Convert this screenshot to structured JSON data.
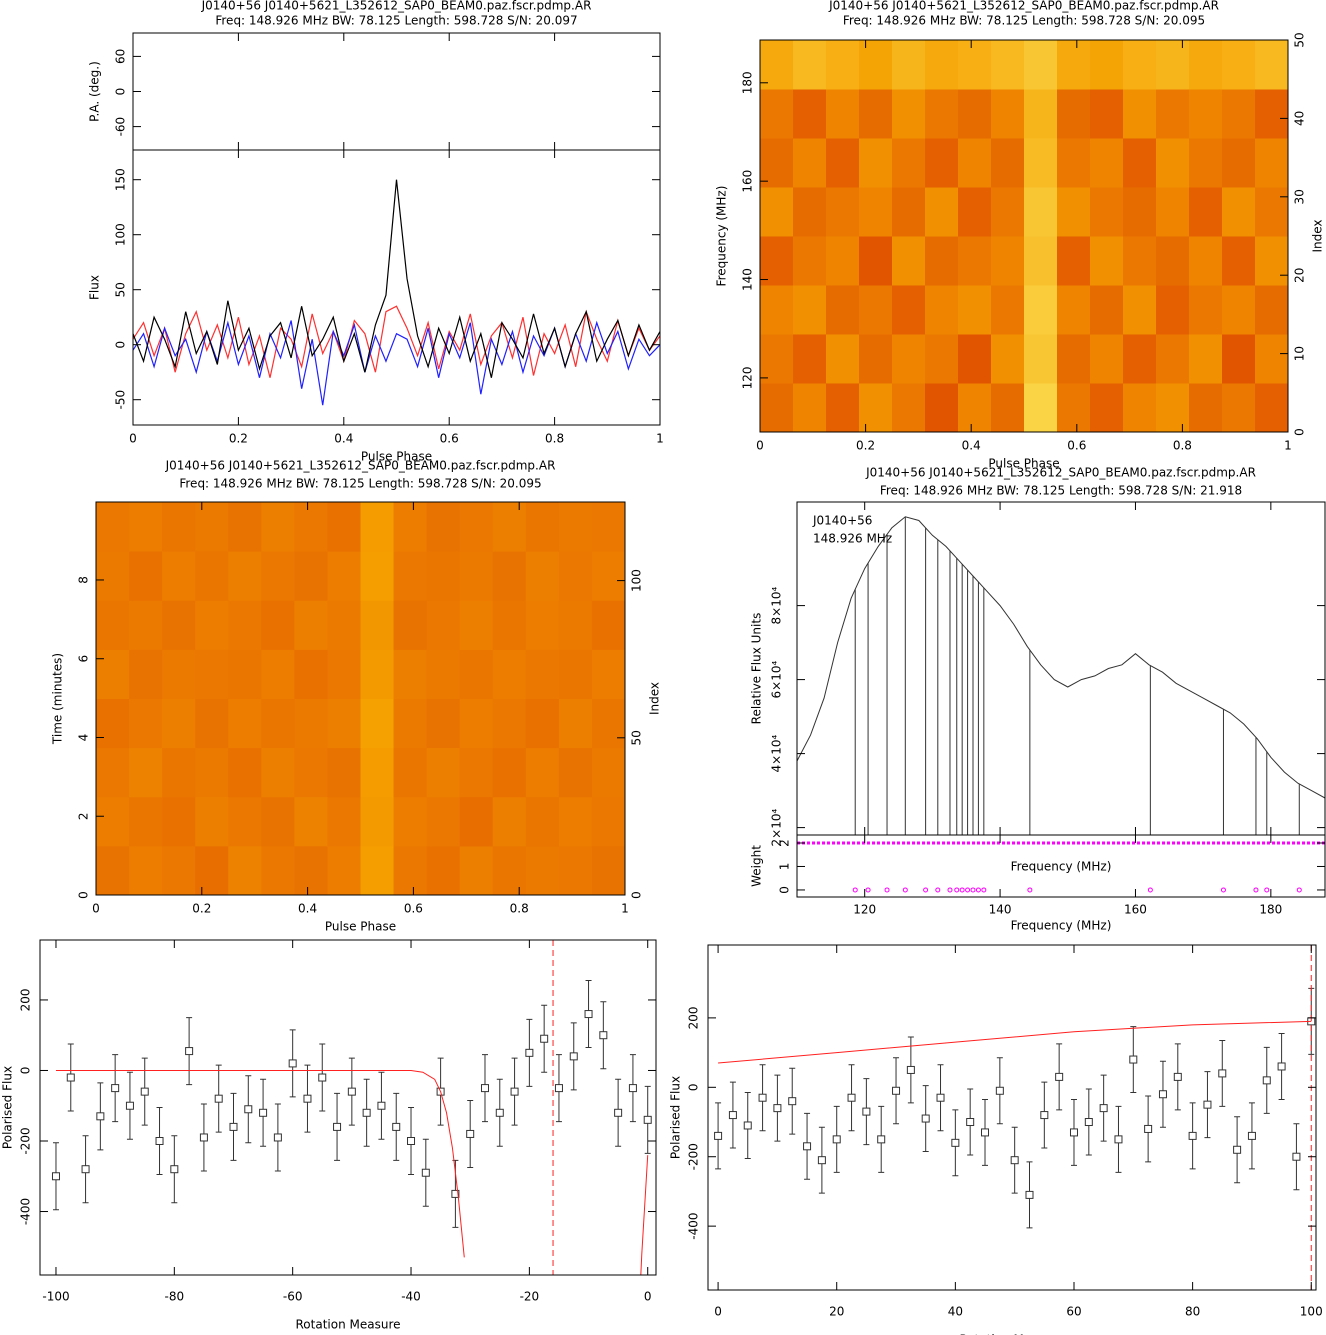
{
  "chart_data": [
    {
      "type": "profile",
      "title": "J0140+56 J0140+5621_L352612_SAP0_BEAM0.paz.fscr.pdmp.AR",
      "subtitle": "Freq: 148.926 MHz BW: 78.125 Length: 598.728 S/N: 20.097",
      "xlabel": "Pulse Phase",
      "ylabel": "Flux",
      "pa_ylabel": "P.A. (deg.)",
      "xlim": [
        0,
        1
      ],
      "xticks": [
        0,
        0.2,
        0.4,
        0.6,
        0.8,
        1
      ],
      "ylim": [
        -73,
        177
      ],
      "yticks": [
        -50,
        0,
        50,
        100,
        150
      ],
      "pa_ylim": [
        -100,
        100
      ],
      "pa_yticks": [
        -60,
        0,
        60
      ],
      "x": [
        0,
        0.02,
        0.04,
        0.06,
        0.08,
        0.1,
        0.12,
        0.14,
        0.16,
        0.18,
        0.2,
        0.22,
        0.24,
        0.26,
        0.28,
        0.3,
        0.32,
        0.34,
        0.36,
        0.38,
        0.4,
        0.42,
        0.44,
        0.46,
        0.48,
        0.5,
        0.52,
        0.54,
        0.56,
        0.58,
        0.6,
        0.62,
        0.64,
        0.66,
        0.68,
        0.7,
        0.72,
        0.74,
        0.76,
        0.78,
        0.8,
        0.82,
        0.84,
        0.86,
        0.88,
        0.9,
        0.92,
        0.94,
        0.96,
        0.98,
        1
      ],
      "series": [
        {
          "color": "#ff3030",
          "values": [
            5,
            20,
            -10,
            15,
            -25,
            10,
            30,
            -5,
            18,
            -12,
            25,
            -18,
            8,
            -30,
            15,
            5,
            -20,
            28,
            -8,
            12,
            -15,
            22,
            10,
            -25,
            30,
            35,
            15,
            -10,
            20,
            -22,
            12,
            -5,
            28,
            -18,
            8,
            20,
            -12,
            25,
            -28,
            10,
            -8,
            18,
            -20,
            30,
            5,
            -15,
            22,
            -10,
            15,
            -5,
            8
          ]
        },
        {
          "color": "#2020ff",
          "values": [
            -5,
            10,
            -20,
            15,
            -10,
            5,
            -25,
            12,
            -15,
            20,
            -18,
            8,
            -30,
            10,
            -12,
            22,
            -40,
            5,
            -55,
            12,
            -10,
            18,
            -25,
            8,
            -15,
            10,
            5,
            -20,
            15,
            -30,
            10,
            -12,
            20,
            -45,
            5,
            -18,
            12,
            -25,
            8,
            -10,
            15,
            -20,
            10,
            -15,
            20,
            -8,
            12,
            -22,
            5,
            -10,
            0
          ]
        },
        {
          "color": "#000000",
          "values": [
            10,
            -15,
            25,
            5,
            -20,
            30,
            -8,
            12,
            -18,
            40,
            -5,
            15,
            -22,
            8,
            20,
            -12,
            35,
            -10,
            5,
            25,
            -15,
            10,
            -25,
            18,
            45,
            150,
            60,
            8,
            -20,
            15,
            -8,
            25,
            -15,
            10,
            -30,
            20,
            5,
            -12,
            28,
            -8,
            15,
            -20,
            10,
            30,
            -15,
            5,
            22,
            -10,
            18,
            -5,
            12
          ]
        }
      ]
    },
    {
      "type": "heatmap",
      "title": "J0140+56 J0140+5621_L352612_SAP0_BEAM0.paz.fscr.pdmp.AR",
      "subtitle": "Freq: 148.926 MHz BW: 78.125 Length: 598.728 S/N: 20.095",
      "xlabel": "Pulse Phase",
      "ylabel": "Frequency (MHz)",
      "y2label": "Index",
      "xlim": [
        0,
        1
      ],
      "xticks": [
        0,
        0.2,
        0.4,
        0.6,
        0.8,
        1
      ],
      "ylim": [
        109,
        188.7
      ],
      "yticks": [
        120,
        140,
        160,
        180
      ],
      "y2lim": [
        0,
        50
      ],
      "y2ticks": [
        0,
        10,
        20,
        30,
        40,
        50
      ],
      "colormap": [
        "#800000",
        "#e05000",
        "#f5a000",
        "#ffff80"
      ],
      "z": [
        [
          0.45,
          0.55,
          0.4,
          0.6,
          0.5,
          0.35,
          0.55,
          0.45,
          0.85,
          0.5,
          0.4,
          0.55,
          0.6,
          0.45,
          0.5,
          0.4
        ],
        [
          0.5,
          0.4,
          0.6,
          0.45,
          0.55,
          0.5,
          0.35,
          0.6,
          0.8,
          0.45,
          0.55,
          0.4,
          0.5,
          0.6,
          0.35,
          0.55
        ],
        [
          0.55,
          0.6,
          0.45,
          0.5,
          0.4,
          0.55,
          0.6,
          0.5,
          0.82,
          0.55,
          0.45,
          0.6,
          0.4,
          0.5,
          0.55,
          0.45
        ],
        [
          0.4,
          0.5,
          0.55,
          0.35,
          0.6,
          0.45,
          0.5,
          0.55,
          0.78,
          0.4,
          0.6,
          0.5,
          0.45,
          0.55,
          0.4,
          0.6
        ],
        [
          0.6,
          0.45,
          0.5,
          0.55,
          0.45,
          0.6,
          0.4,
          0.5,
          0.8,
          0.6,
          0.5,
          0.45,
          0.55,
          0.4,
          0.6,
          0.5
        ],
        [
          0.45,
          0.55,
          0.4,
          0.6,
          0.5,
          0.4,
          0.55,
          0.45,
          0.76,
          0.5,
          0.55,
          0.4,
          0.6,
          0.5,
          0.45,
          0.55
        ],
        [
          0.5,
          0.4,
          0.55,
          0.45,
          0.6,
          0.5,
          0.45,
          0.55,
          0.74,
          0.45,
          0.4,
          0.6,
          0.5,
          0.55,
          0.5,
          0.4
        ],
        [
          0.7,
          0.75,
          0.72,
          0.68,
          0.74,
          0.7,
          0.72,
          0.75,
          0.8,
          0.7,
          0.68,
          0.72,
          0.74,
          0.7,
          0.72,
          0.75
        ]
      ]
    },
    {
      "type": "heatmap",
      "title": "J0140+56 J0140+5621_L352612_SAP0_BEAM0.paz.fscr.pdmp.AR",
      "subtitle": "Freq: 148.926 MHz BW: 78.125 Length: 598.728 S/N: 20.095",
      "xlabel": "Pulse Phase",
      "ylabel": "Time (minutes)",
      "y2label": "Index",
      "xlim": [
        0,
        1
      ],
      "xticks": [
        0,
        0.2,
        0.4,
        0.6,
        0.8,
        1
      ],
      "ylim": [
        0,
        9.98
      ],
      "yticks": [
        0,
        2,
        4,
        6,
        8
      ],
      "y2lim": [
        0,
        125
      ],
      "y2ticks": [
        0,
        50,
        100
      ],
      "colormap": [
        "#800000",
        "#e05000",
        "#f5a000",
        "#ffff80"
      ],
      "z": [
        [
          0.48,
          0.52,
          0.5,
          0.46,
          0.54,
          0.5,
          0.48,
          0.52,
          0.66,
          0.5,
          0.47,
          0.53,
          0.49,
          0.51,
          0.5,
          0.48
        ],
        [
          0.52,
          0.49,
          0.47,
          0.53,
          0.5,
          0.48,
          0.54,
          0.5,
          0.64,
          0.52,
          0.5,
          0.46,
          0.53,
          0.49,
          0.52,
          0.5
        ],
        [
          0.5,
          0.54,
          0.49,
          0.51,
          0.47,
          0.53,
          0.5,
          0.48,
          0.65,
          0.49,
          0.53,
          0.5,
          0.47,
          0.52,
          0.48,
          0.51
        ],
        [
          0.47,
          0.5,
          0.53,
          0.48,
          0.52,
          0.49,
          0.51,
          0.53,
          0.67,
          0.51,
          0.48,
          0.52,
          0.5,
          0.47,
          0.53,
          0.49
        ],
        [
          0.53,
          0.48,
          0.51,
          0.5,
          0.49,
          0.52,
          0.47,
          0.5,
          0.64,
          0.53,
          0.51,
          0.49,
          0.52,
          0.5,
          0.49,
          0.52
        ],
        [
          0.49,
          0.51,
          0.48,
          0.52,
          0.5,
          0.47,
          0.53,
          0.51,
          0.63,
          0.48,
          0.5,
          0.53,
          0.49,
          0.52,
          0.51,
          0.47
        ],
        [
          0.51,
          0.47,
          0.52,
          0.49,
          0.53,
          0.5,
          0.48,
          0.52,
          0.66,
          0.5,
          0.49,
          0.51,
          0.48,
          0.53,
          0.5,
          0.52
        ],
        [
          0.5,
          0.52,
          0.49,
          0.51,
          0.48,
          0.53,
          0.5,
          0.47,
          0.65,
          0.52,
          0.48,
          0.5,
          0.53,
          0.49,
          0.51,
          0.5
        ]
      ]
    },
    {
      "type": "spectrum",
      "title": "J0140+56 J0140+5621_L352612_SAP0_BEAM0.paz.fscr.pdmp.AR",
      "subtitle": "Freq: 148.926 MHz BW: 78.125 Length: 598.728 S/N: 21.918",
      "annotation": [
        "J0140+56",
        "148.926 MHz"
      ],
      "xlabel": "Frequency (MHz)",
      "weight_xlabel": "Frequency (MHz)",
      "ylabel": "Relative Flux Units",
      "weight_ylabel": "Weight",
      "xlim": [
        110,
        188
      ],
      "xticks": [
        120,
        140,
        160,
        180
      ],
      "ylim": [
        18000,
        108000
      ],
      "yticks": [
        {
          "value": 20000,
          "label": "2×10⁴"
        },
        {
          "value": 40000,
          "label": "4×10⁴"
        },
        {
          "value": 60000,
          "label": "6×10⁴"
        },
        {
          "value": 80000,
          "label": "8×10⁴"
        }
      ],
      "weight_ylim": [
        -0.3,
        2.34
      ],
      "weight_yticks": [
        0,
        1,
        2
      ],
      "color": "#333333",
      "weight_color": "#ff00ff",
      "x": [
        110,
        112,
        114,
        116,
        118,
        120,
        122,
        124,
        126,
        128,
        130,
        132,
        134,
        136,
        138,
        140,
        142,
        144,
        146,
        148,
        150,
        152,
        154,
        156,
        158,
        160,
        162,
        164,
        166,
        168,
        170,
        172,
        174,
        176,
        178,
        180,
        182,
        184,
        186,
        188
      ],
      "values": [
        38000,
        45000,
        55000,
        70000,
        82000,
        90000,
        96000,
        101000,
        104000,
        103000,
        99000,
        96000,
        92000,
        88000,
        84000,
        80000,
        75000,
        69000,
        64000,
        60000,
        58000,
        60000,
        61000,
        63000,
        64000,
        67000,
        64000,
        62000,
        59000,
        57000,
        55000,
        53000,
        51000,
        48000,
        44000,
        39000,
        35000,
        32000,
        30000,
        28000
      ],
      "weight_full": 2,
      "weight_x": [
        118.6,
        120.5,
        123.3,
        126,
        129,
        130.8,
        132.6,
        133.6,
        134.4,
        135.2,
        136,
        136.8,
        137.6,
        144.4,
        162.2,
        173,
        177.8,
        179.4,
        184.2
      ],
      "weights": [
        0,
        0,
        0,
        0,
        0,
        0,
        0,
        0,
        0,
        0,
        0,
        0,
        0,
        0,
        0,
        0,
        0,
        0,
        0
      ]
    },
    {
      "type": "scatter",
      "xlabel": "Rotation Measure",
      "ylabel": "Polarised Flux",
      "xlim": [
        -102.7,
        1.4
      ],
      "xticks": [
        -100,
        -80,
        -60,
        -40,
        -20,
        0
      ],
      "ylim": [
        -580,
        370
      ],
      "yticks": [
        -400,
        -200,
        0,
        200
      ],
      "color": "#333333",
      "model_color": "#ff2020",
      "x": [
        -100,
        -97.5,
        -95,
        -92.5,
        -90,
        -87.5,
        -85,
        -82.5,
        -80,
        -77.5,
        -75,
        -72.5,
        -70,
        -67.5,
        -65,
        -62.5,
        -60,
        -57.5,
        -55,
        -52.5,
        -50,
        -47.5,
        -45,
        -42.5,
        -40,
        -37.5,
        -35,
        -32.5,
        -30,
        -27.5,
        -25,
        -22.5,
        -20,
        -17.5,
        -15,
        -12.5,
        -10,
        -7.5,
        -5,
        -2.5,
        0
      ],
      "values": [
        -300,
        -20,
        -280,
        -130,
        -50,
        -100,
        -60,
        -200,
        -280,
        55,
        -190,
        -80,
        -160,
        -110,
        -120,
        -190,
        20,
        -80,
        -20,
        -160,
        -60,
        -120,
        -100,
        -160,
        -200,
        -290,
        -60,
        -350,
        -180,
        -50,
        -120,
        -60,
        50,
        90,
        -50,
        40,
        160,
        100,
        -120,
        -50,
        -140
      ],
      "error": 95,
      "model_x": [
        -100,
        -40,
        -38,
        -36,
        -35,
        -34,
        -33,
        -32,
        -31,
        -30,
        -1.5,
        -1,
        -0.5,
        0
      ],
      "model": [
        0,
        0,
        -5,
        -25,
        -60,
        -120,
        -220,
        -360,
        -530,
        null,
        -700,
        -520,
        -380,
        -240
      ],
      "marker": -16
    },
    {
      "type": "scatter",
      "xlabel": "Rotation Measure",
      "ylabel": "Polarised Flux",
      "xlim": [
        -1.7,
        100.8
      ],
      "xticks": [
        0,
        20,
        40,
        60,
        80,
        100
      ],
      "ylim": [
        -584,
        410
      ],
      "yticks": [
        -400,
        -200,
        0,
        200
      ],
      "color": "#333333",
      "model_color": "#ff2020",
      "x": [
        0,
        2.5,
        5,
        7.5,
        10,
        12.5,
        15,
        17.5,
        20,
        22.5,
        25,
        27.5,
        30,
        32.5,
        35,
        37.5,
        40,
        42.5,
        45,
        47.5,
        50,
        52.5,
        55,
        57.5,
        60,
        62.5,
        65,
        67.5,
        70,
        72.5,
        75,
        77.5,
        80,
        82.5,
        85,
        87.5,
        90,
        92.5,
        95,
        97.5,
        100
      ],
      "values": [
        -140,
        -80,
        -110,
        -30,
        -60,
        -40,
        -170,
        -210,
        -150,
        -30,
        -70,
        -150,
        -10,
        50,
        -90,
        -30,
        -160,
        -100,
        -130,
        -10,
        -210,
        -310,
        -80,
        30,
        -130,
        -100,
        -60,
        -150,
        80,
        -120,
        -20,
        30,
        -140,
        -50,
        40,
        -180,
        -140,
        20,
        60,
        -200,
        190
      ],
      "error": 95,
      "model_x": [
        0,
        20,
        40,
        60,
        80,
        100
      ],
      "model": [
        70,
        100,
        130,
        160,
        180,
        190
      ],
      "marker": 100
    }
  ]
}
